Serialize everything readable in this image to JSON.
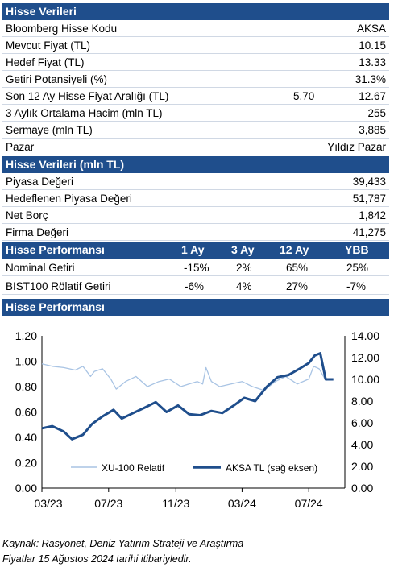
{
  "section1": {
    "title": "Hisse Verileri",
    "rows": [
      {
        "label": "Bloomberg Hisse Kodu",
        "value": "AKSA"
      },
      {
        "label": "Mevcut Fiyat (TL)",
        "value": "10.15"
      },
      {
        "label": "Hedef Fiyat (TL)",
        "value": "13.33"
      },
      {
        "label": "Getiri Potansiyeli (%)",
        "value": "31.3%"
      },
      {
        "label": "Son 12 Ay Hisse Fiyat Aralığı (TL)",
        "low": "5.70",
        "value": "12.67"
      },
      {
        "label": "3 Aylık Ortalama Hacim (mln TL)",
        "value": "255"
      },
      {
        "label": "Sermaye (mln TL)",
        "value": "3,885"
      },
      {
        "label": "Pazar",
        "value": "Yıldız Pazar"
      }
    ]
  },
  "section2": {
    "title": "Hisse Verileri (mln TL)",
    "rows": [
      {
        "label": "Piyasa Değeri",
        "value": "39,433"
      },
      {
        "label": "Hedeflenen Piyasa Değeri",
        "value": "51,787"
      },
      {
        "label": "Net Borç",
        "value": "1,842"
      },
      {
        "label": "Firma Değeri",
        "value": "41,275"
      }
    ]
  },
  "performance": {
    "title": "Hisse Performansı",
    "columns": [
      "1 Ay",
      "3 Ay",
      "12 Ay",
      "YBB"
    ],
    "rows": [
      {
        "label": "Nominal Getiri",
        "values": [
          "-15%",
          "2%",
          "65%",
          "25%"
        ]
      },
      {
        "label": "BIST100 Rölatif Getiri",
        "values": [
          "-6%",
          "4%",
          "27%",
          "-7%"
        ]
      }
    ]
  },
  "chart_section": {
    "title": "Hisse Performansı"
  },
  "chart_data": {
    "type": "line",
    "x_ticks": [
      "03/23",
      "07/23",
      "11/23",
      "03/24",
      "07/24"
    ],
    "y_left": {
      "ticks": [
        "0.00",
        "0.20",
        "0.40",
        "0.60",
        "0.80",
        "1.00",
        "1.20"
      ],
      "lim": [
        0,
        1.2
      ]
    },
    "y_right": {
      "ticks": [
        "0.00",
        "2.00",
        "4.00",
        "6.00",
        "8.00",
        "10.00",
        "12.00",
        "14.00"
      ],
      "lim": [
        0,
        14
      ]
    },
    "series": [
      {
        "name": "XU-100 Relatif",
        "axis": "left",
        "color": "#a9c4e4",
        "x": [
          "2023-03-01",
          "2023-03-20",
          "2023-04-10",
          "2023-05-01",
          "2023-05-15",
          "2023-05-29",
          "2023-06-05",
          "2023-06-20",
          "2023-07-05",
          "2023-07-15",
          "2023-08-01",
          "2023-08-20",
          "2023-09-10",
          "2023-10-01",
          "2023-10-20",
          "2023-11-10",
          "2023-11-25",
          "2023-12-10",
          "2023-12-20",
          "2023-12-26",
          "2024-01-05",
          "2024-01-20",
          "2024-02-10",
          "2024-03-01",
          "2024-03-20",
          "2024-04-10",
          "2024-05-01",
          "2024-05-20",
          "2024-06-10",
          "2024-07-01",
          "2024-07-10",
          "2024-07-20",
          "2024-08-01",
          "2024-08-15"
        ],
        "y": [
          0.98,
          0.96,
          0.95,
          0.93,
          0.96,
          0.88,
          0.92,
          0.94,
          0.86,
          0.78,
          0.84,
          0.88,
          0.8,
          0.84,
          0.86,
          0.8,
          0.82,
          0.84,
          0.82,
          0.95,
          0.84,
          0.8,
          0.82,
          0.84,
          0.8,
          0.77,
          0.84,
          0.88,
          0.82,
          0.86,
          0.96,
          0.94,
          0.85,
          0.86
        ]
      },
      {
        "name": "AKSA TL (sağ eksen)",
        "axis": "right",
        "color": "#1f4e8c",
        "x": [
          "2023-03-01",
          "2023-03-20",
          "2023-04-10",
          "2023-04-25",
          "2023-05-15",
          "2023-06-01",
          "2023-06-20",
          "2023-07-10",
          "2023-07-25",
          "2023-08-15",
          "2023-09-05",
          "2023-09-25",
          "2023-10-15",
          "2023-11-05",
          "2023-11-25",
          "2023-12-15",
          "2024-01-05",
          "2024-01-25",
          "2024-02-15",
          "2024-03-05",
          "2024-03-25",
          "2024-04-15",
          "2024-05-05",
          "2024-05-25",
          "2024-06-15",
          "2024-07-01",
          "2024-07-12",
          "2024-07-22",
          "2024-08-01",
          "2024-08-15"
        ],
        "y": [
          5.5,
          5.7,
          5.2,
          4.5,
          4.9,
          5.9,
          6.6,
          7.2,
          6.4,
          6.9,
          7.4,
          7.9,
          7.0,
          7.6,
          6.8,
          6.7,
          7.1,
          6.9,
          7.6,
          8.3,
          8.0,
          9.3,
          10.2,
          10.4,
          11.0,
          11.5,
          12.2,
          12.4,
          10.0,
          10.0
        ]
      }
    ]
  },
  "footer": {
    "line1": "Kaynak: Rasyonet, Deniz Yatırım Strateji ve Araştırma",
    "line2": "Fiyatlar 15 Ağustos 2024 tarihi itibariyledir."
  }
}
